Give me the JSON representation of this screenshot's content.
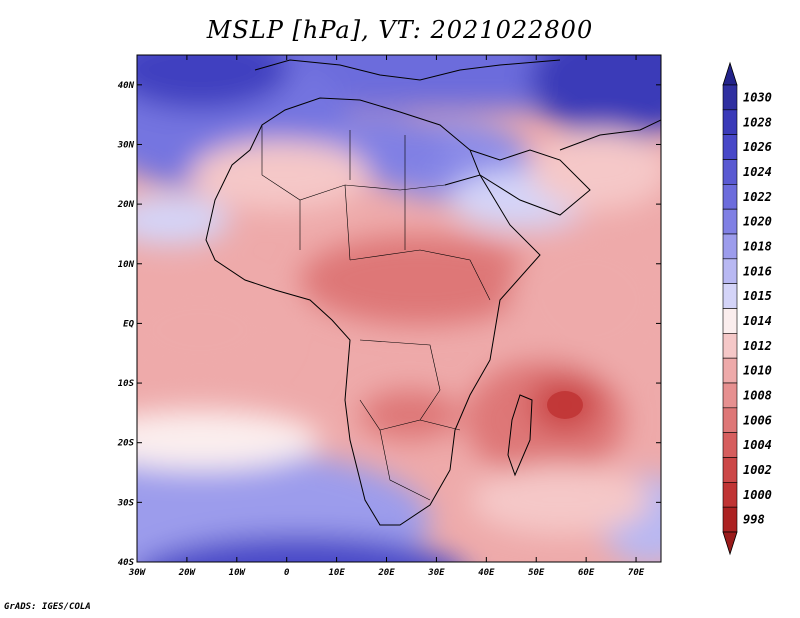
{
  "title": "MSLP [hPa], VT: 2021022800",
  "credit": "GrADS: IGES/COLA",
  "map": {
    "lon_range": [
      -30,
      75
    ],
    "lat_range": [
      -40,
      45
    ],
    "lon_ticks": [
      "30W",
      "20W",
      "10W",
      "0",
      "10E",
      "20E",
      "30E",
      "40E",
      "50E",
      "60E",
      "70E"
    ],
    "lat_ticks": [
      "40N",
      "30N",
      "20N",
      "10N",
      "EQ",
      "10S",
      "20S",
      "30S",
      "40S"
    ]
  },
  "colorbar": {
    "levels": [
      "1030",
      "1028",
      "1026",
      "1024",
      "1022",
      "1020",
      "1018",
      "1016",
      "1015",
      "1014",
      "1012",
      "1010",
      "1008",
      "1006",
      "1004",
      "1002",
      "1000",
      "998"
    ],
    "colors": [
      "#2f2fa0",
      "#3a3ab8",
      "#4848c8",
      "#5a5ad2",
      "#6c6cdc",
      "#8080e4",
      "#9c9cec",
      "#b8b8f2",
      "#d4d4f8",
      "#fbeeee",
      "#f5c8c8",
      "#eeaaaa",
      "#e69090",
      "#de7777",
      "#d65e5e",
      "#cc4848",
      "#c03434",
      "#ac2222"
    ],
    "top_arrow_color": "#23238a",
    "bottom_arrow_color": "#9a1b1b"
  }
}
